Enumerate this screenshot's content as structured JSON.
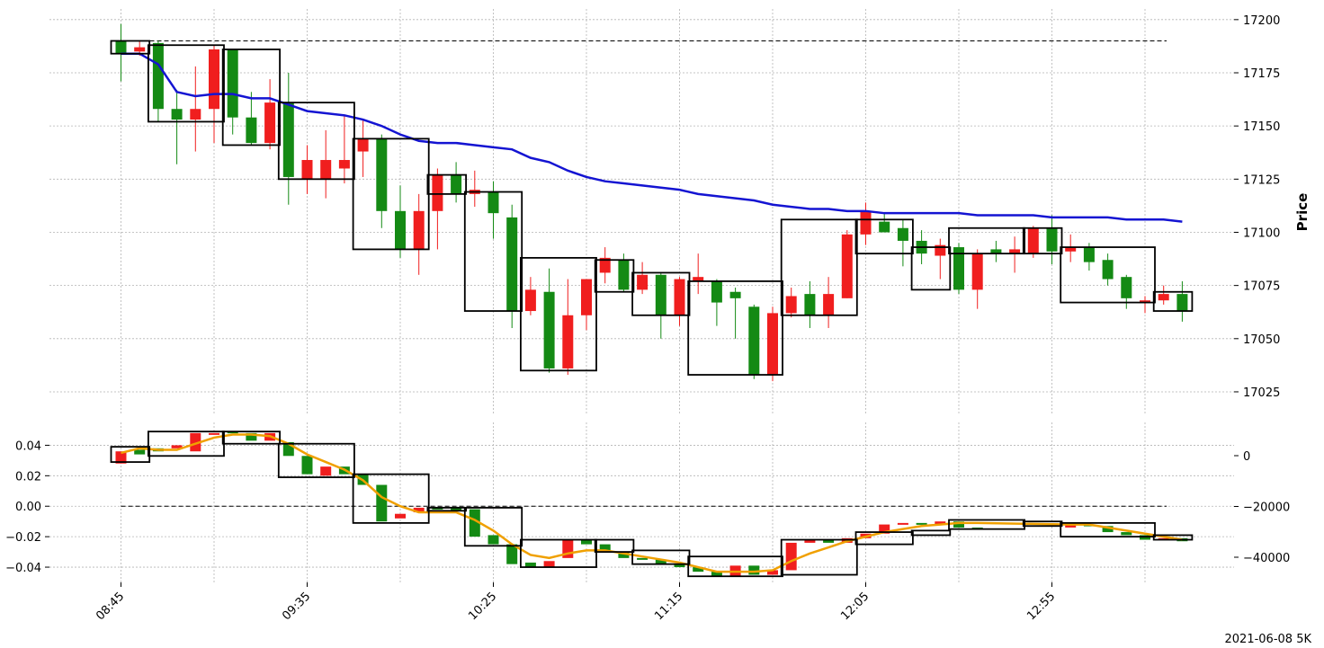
{
  "footnote": "2021-06-08 5K",
  "colors": {
    "up": "#148a14",
    "down": "#f01e1e",
    "ma": "#1414d2",
    "osc_line": "#f0a000",
    "box": "#000000",
    "grid": "#b4b4b4"
  },
  "chart_data": [
    {
      "type": "candlestick",
      "ylabel": "Price",
      "ylim": [
        17014,
        17205
      ],
      "y_ticks": [
        17025,
        17050,
        17075,
        17100,
        17125,
        17150,
        17175,
        17200
      ],
      "y_tick_labels": [
        "17025",
        "17050",
        "17075",
        "17100",
        "17125",
        "17150",
        "17175",
        "17200"
      ],
      "x_tick_labels": [
        "08:45",
        "09:35",
        "10:25",
        "11:15",
        "12:05",
        "12:55"
      ],
      "reference_line": 17190,
      "candles": [
        [
          17190,
          17198,
          17171,
          17184
        ],
        [
          17185,
          17190,
          17183,
          17187
        ],
        [
          17189,
          17190,
          17152,
          17158
        ],
        [
          17158,
          17167,
          17132,
          17153
        ],
        [
          17153,
          17178,
          17138,
          17158
        ],
        [
          17158,
          17188,
          17142,
          17186
        ],
        [
          17186,
          17186,
          17146,
          17154
        ],
        [
          17154,
          17166,
          17141,
          17142
        ],
        [
          17142,
          17172,
          17139,
          17161
        ],
        [
          17161,
          17175,
          17113,
          17126
        ],
        [
          17125,
          17141,
          17118,
          17134
        ],
        [
          17125,
          17148,
          17116,
          17134
        ],
        [
          17130,
          17155,
          17123,
          17134
        ],
        [
          17138,
          17153,
          17126,
          17144
        ],
        [
          17144,
          17146,
          17102,
          17110
        ],
        [
          17110,
          17122,
          17088,
          17092
        ],
        [
          17092,
          17118,
          17080,
          17110
        ],
        [
          17110,
          17130,
          17092,
          17127
        ],
        [
          17127,
          17133,
          17114,
          17118
        ],
        [
          17118,
          17129,
          17112,
          17120
        ],
        [
          17119,
          17124,
          17097,
          17109
        ],
        [
          17107,
          17113,
          17055,
          17063
        ],
        [
          17063,
          17079,
          17061,
          17073
        ],
        [
          17072,
          17083,
          17034,
          17036
        ],
        [
          17036,
          17078,
          17033,
          17061
        ],
        [
          17061,
          17078,
          17054,
          17078
        ],
        [
          17081,
          17093,
          17076,
          17088
        ],
        [
          17087,
          17090,
          17072,
          17073
        ],
        [
          17073,
          17086,
          17071,
          17080
        ],
        [
          17080,
          17081,
          17050,
          17061
        ],
        [
          17061,
          17079,
          17056,
          17078
        ],
        [
          17077,
          17090,
          17071,
          17079
        ],
        [
          17077,
          17078,
          17056,
          17067
        ],
        [
          17072,
          17074,
          17050,
          17069
        ],
        [
          17065,
          17066,
          17031,
          17033
        ],
        [
          17033,
          17065,
          17030,
          17062
        ],
        [
          17062,
          17074,
          17060,
          17070
        ],
        [
          17071,
          17077,
          17055,
          17061
        ],
        [
          17061,
          17079,
          17055,
          17071
        ],
        [
          17069,
          17101,
          17069,
          17099
        ],
        [
          17099,
          17114,
          17094,
          17110
        ],
        [
          17105,
          17109,
          17100,
          17100
        ],
        [
          17102,
          17106,
          17084,
          17096
        ],
        [
          17096,
          17101,
          17085,
          17090
        ],
        [
          17089,
          17097,
          17078,
          17094
        ],
        [
          17093,
          17095,
          17071,
          17073
        ],
        [
          17073,
          17092,
          17064,
          17090
        ],
        [
          17092,
          17096,
          17086,
          17090
        ],
        [
          17090,
          17098,
          17081,
          17092
        ],
        [
          17090,
          17103,
          17088,
          17102
        ],
        [
          17102,
          17108,
          17085,
          17091
        ],
        [
          17091,
          17099,
          17086,
          17093
        ],
        [
          17093,
          17095,
          17082,
          17086
        ],
        [
          17087,
          17090,
          17075,
          17078
        ],
        [
          17079,
          17080,
          17064,
          17069
        ],
        [
          17067,
          17070,
          17062,
          17068
        ],
        [
          17068,
          17075,
          17066,
          17071
        ],
        [
          17071,
          17077,
          17058,
          17063
        ]
      ],
      "moving_average": [
        17184,
        17184,
        17179,
        17166,
        17164,
        17165,
        17165,
        17163,
        17163,
        17160,
        17157,
        17156,
        17155,
        17153,
        17150,
        17146,
        17143,
        17142,
        17142,
        17141,
        17140,
        17139,
        17135,
        17133,
        17129,
        17126,
        17124,
        17123,
        17122,
        17121,
        17120,
        17118,
        17117,
        17116,
        17115,
        17113,
        17112,
        17111,
        17111,
        17110,
        17110,
        17109,
        17109,
        17109,
        17109,
        17109,
        17108,
        17108,
        17108,
        17108,
        17107,
        17107,
        17107,
        17107,
        17106,
        17106,
        17106,
        17105
      ],
      "boxes": [
        [
          0,
          1,
          17184,
          17190
        ],
        [
          2,
          5,
          17152,
          17188
        ],
        [
          6,
          8,
          17141,
          17186
        ],
        [
          9,
          12,
          17125,
          17161
        ],
        [
          13,
          16,
          17092,
          17144
        ],
        [
          17,
          18,
          17118,
          17127
        ],
        [
          19,
          21,
          17063,
          17119
        ],
        [
          22,
          25,
          17035,
          17088
        ],
        [
          26,
          27,
          17072,
          17087
        ],
        [
          28,
          30,
          17061,
          17081
        ],
        [
          31,
          35,
          17033,
          17077
        ],
        [
          36,
          39,
          17061,
          17106
        ],
        [
          40,
          42,
          17090,
          17106
        ],
        [
          43,
          44,
          17073,
          17093
        ],
        [
          45,
          48,
          17090,
          17102
        ],
        [
          49,
          50,
          17090,
          17102
        ],
        [
          51,
          55,
          17067,
          17093
        ],
        [
          56,
          57,
          17063,
          17072
        ]
      ]
    },
    {
      "type": "bar_oscillator",
      "ylim": [
        -0.05,
        0.055
      ],
      "y_ticks_left": [
        -0.04,
        -0.02,
        0.0,
        0.02,
        0.04
      ],
      "y_tick_labels_left": [
        "−0.04",
        "−0.02",
        "0.00",
        "0.02",
        "0.04"
      ],
      "y_ticks_right_values": [
        -40000,
        -20000,
        0
      ],
      "y_tick_labels_right": [
        "−40000",
        "−20000",
        "0"
      ],
      "reference_line": 0.0,
      "bars": [
        [
          0.028,
          0.036
        ],
        [
          0.037,
          0.034
        ],
        [
          0.038,
          0.036
        ],
        [
          0.038,
          0.04
        ],
        [
          0.036,
          0.048
        ],
        [
          0.048,
          0.048
        ],
        [
          0.049,
          0.048
        ],
        [
          0.048,
          0.043
        ],
        [
          0.043,
          0.048
        ],
        [
          0.042,
          0.033
        ],
        [
          0.033,
          0.021
        ],
        [
          0.02,
          0.026
        ],
        [
          0.026,
          0.021
        ],
        [
          0.021,
          0.014
        ],
        [
          0.014,
          -0.01
        ],
        [
          -0.008,
          -0.005
        ],
        [
          -0.004,
          -0.001
        ],
        [
          -0.001,
          -0.002
        ],
        [
          -0.001,
          -0.003
        ],
        [
          -0.002,
          -0.02
        ],
        [
          -0.019,
          -0.025
        ],
        [
          -0.025,
          -0.038
        ],
        [
          -0.037,
          -0.04
        ],
        [
          -0.04,
          -0.036
        ],
        [
          -0.034,
          -0.022
        ],
        [
          -0.022,
          -0.025
        ],
        [
          -0.025,
          -0.03
        ],
        [
          -0.03,
          -0.034
        ],
        [
          -0.034,
          -0.035
        ],
        [
          -0.035,
          -0.038
        ],
        [
          -0.038,
          -0.04
        ],
        [
          -0.04,
          -0.043
        ],
        [
          -0.043,
          -0.046
        ],
        [
          -0.046,
          -0.039
        ],
        [
          -0.039,
          -0.045
        ],
        [
          -0.045,
          -0.042
        ],
        [
          -0.042,
          -0.024
        ],
        [
          -0.024,
          -0.022
        ],
        [
          -0.022,
          -0.024
        ],
        [
          -0.024,
          -0.021
        ],
        [
          -0.021,
          -0.018
        ],
        [
          -0.018,
          -0.012
        ],
        [
          -0.012,
          -0.011
        ],
        [
          -0.011,
          -0.012
        ],
        [
          -0.012,
          -0.01
        ],
        [
          -0.01,
          -0.014
        ],
        [
          -0.014,
          -0.015
        ],
        [
          -0.014,
          -0.012
        ],
        [
          -0.012,
          -0.013
        ],
        [
          -0.013,
          -0.017
        ],
        [
          -0.017,
          -0.019
        ],
        [
          -0.019,
          -0.022
        ],
        [
          -0.022,
          -0.021
        ],
        [
          -0.021,
          -0.023
        ]
      ],
      "bar_x": [
        0,
        1,
        2,
        3,
        4,
        5,
        6,
        7,
        8,
        9,
        10,
        11,
        12,
        13,
        14,
        15,
        16,
        17,
        18,
        19,
        20,
        21,
        22,
        23,
        24,
        25,
        26,
        27,
        28,
        29,
        30,
        31,
        32,
        33,
        34,
        35,
        36,
        37,
        38,
        39,
        40,
        41,
        42,
        43,
        44,
        45,
        46,
        47,
        48,
        49,
        50,
        51,
        52,
        53
      ],
      "smoothed_line": [
        0.035,
        0.038,
        0.037,
        0.037,
        0.041,
        0.045,
        0.047,
        0.047,
        0.046,
        0.041,
        0.034,
        0.029,
        0.024,
        0.017,
        0.006,
        0.0,
        -0.004,
        -0.004,
        -0.004,
        -0.009,
        -0.016,
        -0.025,
        -0.032,
        -0.034,
        -0.031,
        -0.029,
        -0.029,
        -0.031,
        -0.033,
        -0.035,
        -0.037,
        -0.04,
        -0.043,
        -0.043,
        -0.043,
        -0.042,
        -0.036,
        -0.031,
        -0.027,
        -0.023,
        -0.02,
        -0.017,
        -0.015,
        -0.013,
        -0.012,
        -0.011,
        -0.011,
        -0.012,
        -0.012,
        -0.014,
        -0.016,
        -0.018,
        -0.02,
        -0.022
      ],
      "boxes": [
        [
          0,
          1,
          0.029,
          0.039
        ],
        [
          2,
          5,
          0.033,
          0.049
        ],
        [
          6,
          8,
          0.041,
          0.049
        ],
        [
          9,
          12,
          0.019,
          0.041
        ],
        [
          13,
          16,
          -0.011,
          0.021
        ],
        [
          17,
          18,
          -0.003,
          -0.001
        ],
        [
          19,
          21,
          -0.026,
          -0.001
        ],
        [
          22,
          25,
          -0.04,
          -0.022
        ],
        [
          26,
          27,
          -0.03,
          -0.022
        ],
        [
          28,
          30,
          -0.038,
          -0.029
        ],
        [
          31,
          35,
          -0.046,
          -0.033
        ],
        [
          36,
          39,
          -0.045,
          -0.022
        ],
        [
          40,
          42,
          -0.025,
          -0.017
        ],
        [
          43,
          44,
          -0.019,
          -0.016
        ],
        [
          45,
          48,
          -0.015,
          -0.009
        ],
        [
          49,
          50,
          -0.013,
          -0.01
        ],
        [
          51,
          55,
          -0.02,
          -0.011
        ],
        [
          56,
          57,
          -0.022,
          -0.019
        ]
      ]
    }
  ]
}
